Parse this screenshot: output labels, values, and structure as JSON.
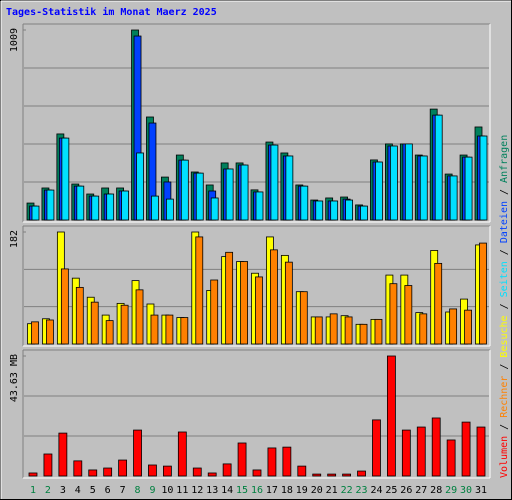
{
  "title": "Tages-Statistik im Monat Maerz 2025",
  "categories": [
    "1",
    "2",
    "3",
    "4",
    "5",
    "6",
    "7",
    "8",
    "9",
    "10",
    "11",
    "12",
    "13",
    "14",
    "15",
    "16",
    "17",
    "18",
    "19",
    "20",
    "21",
    "22",
    "23",
    "24",
    "25",
    "26",
    "27",
    "28",
    "29",
    "30",
    "31"
  ],
  "category_colors": [
    "#008040",
    "#008040",
    "#000000",
    "#000000",
    "#000000",
    "#000000",
    "#000000",
    "#008040",
    "#008040",
    "#000000",
    "#000000",
    "#000000",
    "#000000",
    "#000000",
    "#008040",
    "#008040",
    "#000000",
    "#000000",
    "#000000",
    "#000000",
    "#000000",
    "#008040",
    "#008040",
    "#000000",
    "#000000",
    "#000000",
    "#000000",
    "#000000",
    "#008040",
    "#008040",
    "#000000"
  ],
  "legend_separator": " / ",
  "chart_data": [
    {
      "type": "bar",
      "ylim": [
        0,
        1009
      ],
      "yticks": [
        1009
      ],
      "series": [
        {
          "name": "Anfragen",
          "color": "#00805c",
          "values": [
            90,
            170,
            457,
            191,
            138,
            170,
            170,
            1009,
            547,
            228,
            345,
            255,
            186,
            303,
            303,
            160,
            414,
            356,
            186,
            106,
            117,
            122,
            80,
            319,
            404,
            404,
            345,
            589,
            244,
            345,
            494
          ]
        },
        {
          "name": "Dateien",
          "color": "#0040ff",
          "values": [
            74,
            159,
            435,
            180,
            127,
            138,
            154,
            977,
            515,
            202,
            318,
            249,
            154,
            271,
            292,
            149,
            398,
            340,
            180,
            101,
            101,
            111,
            74,
            308,
            393,
            404,
            340,
            557,
            234,
            334,
            446
          ]
        },
        {
          "name": "Seiten",
          "color": "#00e0ff",
          "values": [
            74,
            159,
            435,
            180,
            127,
            138,
            154,
            356,
            127,
            111,
            318,
            249,
            117,
            271,
            292,
            149,
            398,
            340,
            180,
            101,
            101,
            106,
            74,
            308,
            393,
            404,
            340,
            557,
            234,
            334,
            446
          ]
        }
      ]
    },
    {
      "type": "bar",
      "ylim": [
        0,
        182
      ],
      "yticks": [
        182
      ],
      "series": [
        {
          "name": "Besuche",
          "color": "#ffff00",
          "values": [
            33,
            41,
            182,
            107,
            76,
            47,
            66,
            103,
            65,
            47,
            43,
            182,
            87,
            142,
            134,
            115,
            174,
            144,
            85,
            44,
            44,
            46,
            32,
            40,
            112,
            112,
            51,
            152,
            52,
            73,
            161
          ]
        },
        {
          "name": "Rechner",
          "color": "#ff8000",
          "values": [
            36,
            39,
            122,
            92,
            68,
            38,
            63,
            88,
            47,
            47,
            43,
            174,
            104,
            149,
            134,
            109,
            153,
            133,
            85,
            44,
            49,
            44,
            32,
            40,
            98,
            95,
            49,
            131,
            57,
            55,
            164
          ]
        }
      ]
    },
    {
      "type": "bar",
      "ylim": [
        0,
        43.63
      ],
      "yticks": [
        {
          "value": 43.63,
          "label": "43.63 MB"
        }
      ],
      "series": [
        {
          "name": "Volumen",
          "color": "#ff0000",
          "values": [
            1.1,
            8.0,
            15.6,
            5.5,
            2.2,
            2.9,
            5.8,
            16.7,
            4.0,
            3.6,
            16.0,
            2.9,
            1.1,
            4.4,
            12.0,
            2.2,
            10.2,
            10.5,
            3.6,
            0.7,
            0.7,
            0.7,
            1.8,
            20.4,
            43.63,
            16.7,
            17.8,
            21.1,
            13.1,
            19.6,
            17.8
          ]
        }
      ]
    }
  ]
}
